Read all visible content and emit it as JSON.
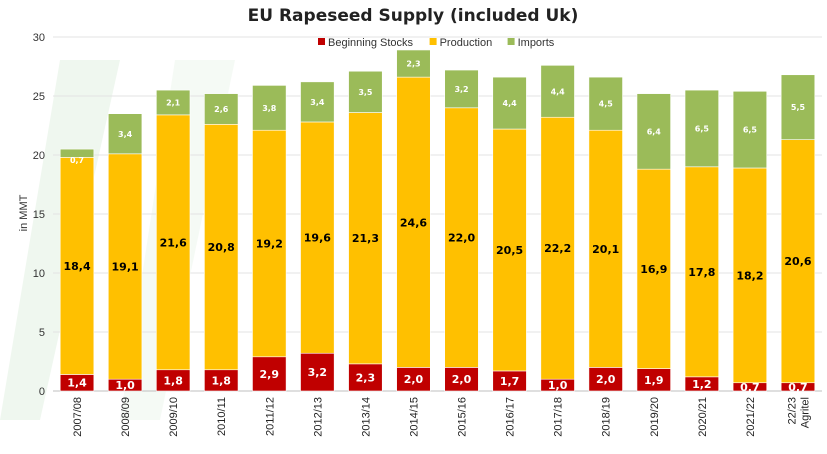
{
  "chart_data": {
    "type": "bar",
    "stacked": true,
    "title": "EU Rapeseed Supply (included Uk)",
    "ylabel": "in MMT",
    "xlabel": "",
    "ylim": [
      0,
      30
    ],
    "yticks": [
      0,
      5,
      10,
      15,
      20,
      25,
      30
    ],
    "grid": true,
    "legend_position": "top",
    "categories": [
      "2007/08",
      "2008/09",
      "2009/10",
      "2010/11",
      "2011/12",
      "2012/13",
      "2013/14",
      "2014/15",
      "2015/16",
      "2016/17",
      "2017/18",
      "2018/19",
      "2019/20",
      "2020/21",
      "2021/22",
      "22/23\nAgritel"
    ],
    "series": [
      {
        "name": "Beginning Stocks",
        "color": "#c00000",
        "values": [
          1.4,
          1.0,
          1.8,
          1.8,
          2.9,
          3.2,
          2.3,
          2.0,
          2.0,
          1.7,
          1.0,
          2.0,
          1.9,
          1.2,
          0.7,
          0.7
        ]
      },
      {
        "name": "Production",
        "color": "#ffc000",
        "values": [
          18.4,
          19.1,
          21.6,
          20.8,
          19.2,
          19.6,
          21.3,
          24.6,
          22.0,
          20.5,
          22.2,
          20.1,
          16.9,
          17.8,
          18.2,
          20.6
        ]
      },
      {
        "name": "Imports",
        "color": "#9bbb59",
        "values": [
          0.7,
          3.4,
          2.1,
          2.6,
          3.8,
          3.4,
          3.5,
          2.3,
          3.2,
          4.4,
          4.4,
          4.5,
          6.4,
          6.5,
          6.5,
          5.5
        ]
      }
    ]
  }
}
